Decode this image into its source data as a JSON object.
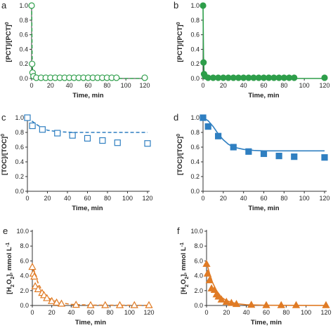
{
  "chart_data": [
    {
      "panel": "a",
      "type": "scatter",
      "color": "#2e9e4a",
      "marker": "circle",
      "filled": false,
      "fit_style": "dashed",
      "xlabel": "Time, min",
      "ylabel": "[PCT]/[PCT]0",
      "xlim": [
        0,
        120
      ],
      "ylim": [
        0,
        1.0
      ],
      "xticks": [
        "0",
        "20",
        "40",
        "60",
        "80",
        "100",
        "120"
      ],
      "yticks": [
        "0.0",
        "0.2",
        "0.4",
        "0.6",
        "0.8",
        "1.0"
      ],
      "points": [
        [
          0,
          1.0
        ],
        [
          0.5,
          0.2
        ],
        [
          1,
          0.08
        ],
        [
          2,
          0.03
        ],
        [
          5,
          0.01
        ],
        [
          10,
          0.01
        ],
        [
          15,
          0.01
        ],
        [
          20,
          0.01
        ],
        [
          25,
          0.01
        ],
        [
          30,
          0.01
        ],
        [
          35,
          0.01
        ],
        [
          40,
          0.01
        ],
        [
          45,
          0.01
        ],
        [
          50,
          0.01
        ],
        [
          55,
          0.01
        ],
        [
          60,
          0.01
        ],
        [
          65,
          0.01
        ],
        [
          70,
          0.01
        ],
        [
          75,
          0.01
        ],
        [
          80,
          0.01
        ],
        [
          85,
          0.01
        ],
        [
          90,
          0.01
        ],
        [
          120,
          0.01
        ]
      ],
      "fit": [
        [
          0,
          1.0
        ],
        [
          0.5,
          0.3
        ],
        [
          1,
          0.12
        ],
        [
          2,
          0.03
        ],
        [
          4,
          0.0
        ],
        [
          120,
          0.0
        ]
      ]
    },
    {
      "panel": "b",
      "type": "scatter",
      "color": "#2e9e4a",
      "marker": "circle",
      "filled": true,
      "fit_style": "solid",
      "xlabel": "Time, min",
      "ylabel": "[PCT]/[PCT]0",
      "xlim": [
        0,
        120
      ],
      "ylim": [
        0,
        1.0
      ],
      "xticks": [
        "0",
        "20",
        "40",
        "60",
        "80",
        "100",
        "120"
      ],
      "yticks": [
        "0.0",
        "0.2",
        "0.4",
        "0.6",
        "0.8",
        "1.0"
      ],
      "points": [
        [
          0,
          1.0
        ],
        [
          0.5,
          0.22
        ],
        [
          1,
          0.06
        ],
        [
          2,
          0.03
        ],
        [
          5,
          0.01
        ],
        [
          10,
          0.01
        ],
        [
          15,
          0.01
        ],
        [
          20,
          0.01
        ],
        [
          25,
          0.01
        ],
        [
          30,
          0.01
        ],
        [
          35,
          0.01
        ],
        [
          40,
          0.01
        ],
        [
          45,
          0.01
        ],
        [
          50,
          0.01
        ],
        [
          55,
          0.01
        ],
        [
          60,
          0.01
        ],
        [
          65,
          0.01
        ],
        [
          70,
          0.01
        ],
        [
          75,
          0.01
        ],
        [
          80,
          0.01
        ],
        [
          85,
          0.01
        ],
        [
          90,
          0.01
        ],
        [
          120,
          0.01
        ]
      ],
      "fit": [
        [
          0,
          1.0
        ],
        [
          0.5,
          0.3
        ],
        [
          1,
          0.1
        ],
        [
          2,
          0.02
        ],
        [
          4,
          0.0
        ],
        [
          120,
          0.0
        ]
      ]
    },
    {
      "panel": "c",
      "type": "scatter",
      "color": "#2f7fc1",
      "marker": "square",
      "filled": false,
      "fit_style": "dashed",
      "xlabel": "Time, min",
      "ylabel": "[TOC]/[TOC]0",
      "xlim": [
        0,
        120
      ],
      "ylim": [
        0,
        1.0
      ],
      "xticks": [
        "0",
        "20",
        "40",
        "60",
        "80",
        "100",
        "120"
      ],
      "yticks": [
        "0.0",
        "0.2",
        "0.4",
        "0.6",
        "0.8",
        "1.0"
      ],
      "points": [
        [
          0,
          1.0
        ],
        [
          5,
          0.89
        ],
        [
          15,
          0.84
        ],
        [
          30,
          0.79
        ],
        [
          45,
          0.76
        ],
        [
          60,
          0.72
        ],
        [
          75,
          0.69
        ],
        [
          90,
          0.66
        ],
        [
          120,
          0.65
        ]
      ],
      "fit": [
        [
          0,
          1.0
        ],
        [
          5,
          0.95
        ],
        [
          10,
          0.9
        ],
        [
          15,
          0.86
        ],
        [
          20,
          0.83
        ],
        [
          30,
          0.81
        ],
        [
          45,
          0.8
        ],
        [
          60,
          0.8
        ],
        [
          120,
          0.8
        ]
      ]
    },
    {
      "panel": "d",
      "type": "scatter",
      "color": "#2f7fc1",
      "marker": "square",
      "filled": true,
      "fit_style": "solid",
      "xlabel": "Time, min",
      "ylabel": "[TOC]/[TOC]0",
      "xlim": [
        0,
        120
      ],
      "ylim": [
        0,
        1.0
      ],
      "xticks": [
        "0",
        "20",
        "40",
        "60",
        "80",
        "100",
        "120"
      ],
      "yticks": [
        "0.0",
        "0.2",
        "0.4",
        "0.6",
        "0.8",
        "1.0"
      ],
      "points": [
        [
          0,
          1.0
        ],
        [
          5,
          0.88
        ],
        [
          15,
          0.75
        ],
        [
          30,
          0.6
        ],
        [
          45,
          0.54
        ],
        [
          60,
          0.51
        ],
        [
          75,
          0.48
        ],
        [
          90,
          0.47
        ],
        [
          120,
          0.46
        ]
      ],
      "fit": [
        [
          0,
          1.0
        ],
        [
          5,
          0.96
        ],
        [
          10,
          0.88
        ],
        [
          15,
          0.78
        ],
        [
          20,
          0.7
        ],
        [
          25,
          0.64
        ],
        [
          30,
          0.6
        ],
        [
          40,
          0.57
        ],
        [
          50,
          0.555
        ],
        [
          60,
          0.55
        ],
        [
          120,
          0.55
        ]
      ]
    },
    {
      "panel": "e",
      "type": "scatter",
      "color": "#e07b25",
      "marker": "triangle",
      "filled": false,
      "fit_style": "dashed",
      "xlabel": "Time, min",
      "ylabel": "[H2O2], mmol L-1",
      "xlim": [
        0,
        120
      ],
      "ylim": [
        0,
        10.0
      ],
      "xticks": [
        "0",
        "20",
        "40",
        "60",
        "80",
        "100",
        "120"
      ],
      "yticks": [
        "0.0",
        "2.0",
        "4.0",
        "6.0",
        "8.0",
        "10.0"
      ],
      "points": [
        [
          0,
          5.2
        ],
        [
          1,
          4.3
        ],
        [
          2,
          3.9
        ],
        [
          3,
          2.6
        ],
        [
          6,
          2.2
        ],
        [
          10,
          1.7
        ],
        [
          12,
          1.4
        ],
        [
          15,
          1.0
        ],
        [
          20,
          0.6
        ],
        [
          25,
          0.4
        ],
        [
          30,
          0.25
        ],
        [
          45,
          0.1
        ],
        [
          60,
          0.05
        ],
        [
          75,
          0.05
        ],
        [
          90,
          0.05
        ],
        [
          105,
          0.05
        ],
        [
          120,
          0.05
        ]
      ],
      "fit": [
        [
          0,
          5.6
        ],
        [
          3,
          4.1
        ],
        [
          6,
          3.0
        ],
        [
          10,
          2.0
        ],
        [
          15,
          1.2
        ],
        [
          20,
          0.75
        ],
        [
          30,
          0.35
        ],
        [
          40,
          0.15
        ],
        [
          60,
          0.05
        ],
        [
          120,
          0.02
        ]
      ]
    },
    {
      "panel": "f",
      "type": "scatter",
      "color": "#e07b25",
      "marker": "triangle",
      "filled": true,
      "fit_style": "solid",
      "xlabel": "Time, min",
      "ylabel": "[H2O2], mmol L-1",
      "xlim": [
        0,
        120
      ],
      "ylim": [
        0,
        10.0
      ],
      "xticks": [
        "0",
        "20",
        "40",
        "60",
        "80",
        "100",
        "120"
      ],
      "yticks": [
        "0.0",
        "2.0",
        "4.0",
        "6.0",
        "8.0",
        "10.0"
      ],
      "points": [
        [
          0,
          5.6
        ],
        [
          1,
          4.3
        ],
        [
          3,
          3.4
        ],
        [
          5,
          2.3
        ],
        [
          8,
          2.1
        ],
        [
          10,
          1.5
        ],
        [
          12,
          1.2
        ],
        [
          15,
          0.8
        ],
        [
          20,
          0.5
        ],
        [
          25,
          0.35
        ],
        [
          30,
          0.2
        ],
        [
          45,
          0.1
        ],
        [
          60,
          0.05
        ],
        [
          75,
          0.05
        ],
        [
          90,
          0.05
        ],
        [
          120,
          0.05
        ]
      ],
      "fit": [
        [
          0,
          5.8
        ],
        [
          3,
          4.3
        ],
        [
          6,
          3.1
        ],
        [
          10,
          2.0
        ],
        [
          15,
          1.1
        ],
        [
          20,
          0.65
        ],
        [
          30,
          0.25
        ],
        [
          40,
          0.1
        ],
        [
          60,
          0.03
        ],
        [
          120,
          0.01
        ]
      ]
    }
  ]
}
